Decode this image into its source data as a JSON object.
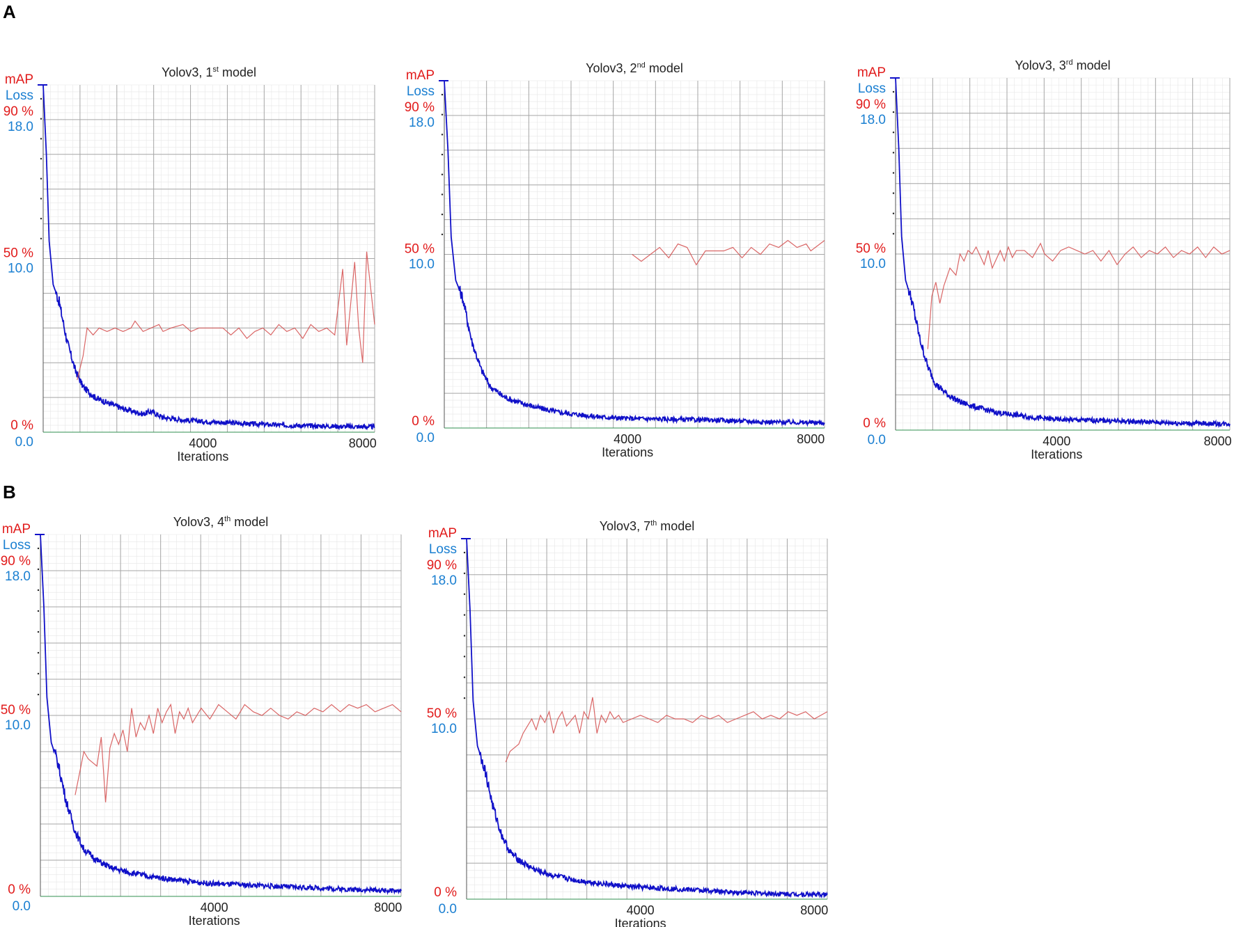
{
  "figure": {
    "panels": [
      "A",
      "B"
    ]
  },
  "colors": {
    "map": "#d44b4b",
    "loss": "#1010c8",
    "map_label": "#e11b1b",
    "loss_label": "#1a7fd1",
    "grid_major": "#a6a6a6",
    "grid_minor": "#e6e6e6"
  },
  "chart_data": [
    {
      "type": "line",
      "panel": "A",
      "title": "Yolov3, 1st model",
      "title_main": "Yolov3,  1",
      "title_sup": "st",
      "title_tail": " model",
      "xlabel": "Iterations",
      "xticks": [
        "4000",
        "8000"
      ],
      "y_left_labels": [
        "mAP",
        "Loss",
        "90 %",
        "18.0",
        "50 %",
        "10.0",
        "0 %",
        "0.0"
      ],
      "xlim": [
        0,
        8300
      ],
      "loss_ylim": [
        0,
        20
      ],
      "map_ylim": [
        0,
        100
      ],
      "loss_curve": [
        [
          0,
          20
        ],
        [
          80,
          16
        ],
        [
          150,
          11
        ],
        [
          250,
          8.5
        ],
        [
          400,
          7.5
        ],
        [
          600,
          5.2
        ],
        [
          800,
          3.6
        ],
        [
          1000,
          2.6
        ],
        [
          1300,
          2.0
        ],
        [
          1600,
          1.7
        ],
        [
          2000,
          1.35
        ],
        [
          2500,
          1.05
        ],
        [
          2700,
          1.2
        ],
        [
          3000,
          0.85
        ],
        [
          3500,
          0.7
        ],
        [
          4000,
          0.62
        ],
        [
          5000,
          0.5
        ],
        [
          6000,
          0.4
        ],
        [
          7000,
          0.35
        ],
        [
          8300,
          0.3
        ]
      ],
      "map_curve": [
        [
          850,
          15
        ],
        [
          1000,
          22
        ],
        [
          1100,
          30
        ],
        [
          1250,
          28
        ],
        [
          1400,
          30
        ],
        [
          1600,
          29
        ],
        [
          1800,
          30
        ],
        [
          2000,
          29
        ],
        [
          2200,
          30
        ],
        [
          2300,
          32
        ],
        [
          2500,
          29
        ],
        [
          2700,
          30
        ],
        [
          2900,
          31
        ],
        [
          3000,
          29
        ],
        [
          3200,
          30
        ],
        [
          3500,
          31
        ],
        [
          3700,
          29
        ],
        [
          3900,
          30
        ],
        [
          4100,
          30
        ],
        [
          4300,
          30
        ],
        [
          4500,
          30
        ],
        [
          4700,
          28
        ],
        [
          4900,
          30
        ],
        [
          5100,
          27
        ],
        [
          5300,
          29
        ],
        [
          5500,
          30
        ],
        [
          5700,
          28
        ],
        [
          5900,
          31
        ],
        [
          6100,
          29
        ],
        [
          6300,
          30
        ],
        [
          6500,
          27
        ],
        [
          6700,
          31
        ],
        [
          6900,
          29
        ],
        [
          7100,
          30
        ],
        [
          7300,
          28
        ],
        [
          7500,
          47
        ],
        [
          7600,
          25
        ],
        [
          7800,
          49
        ],
        [
          7900,
          30
        ],
        [
          8000,
          20
        ],
        [
          8100,
          52
        ],
        [
          8300,
          31
        ]
      ]
    },
    {
      "type": "line",
      "panel": "A",
      "title": "Yolov3, 2nd model",
      "title_main": "Yolov3,  2",
      "title_sup": "nd",
      "title_tail": " model",
      "xlabel": "Iterations",
      "xticks": [
        "4000",
        "8000"
      ],
      "y_left_labels": [
        "mAP",
        "Loss",
        "90 %",
        "18.0",
        "50 %",
        "10.0",
        "0 %",
        "0.0"
      ],
      "xlim": [
        0,
        8300
      ],
      "loss_ylim": [
        0,
        20
      ],
      "map_ylim": [
        0,
        100
      ],
      "loss_curve": [
        [
          0,
          20
        ],
        [
          80,
          16
        ],
        [
          150,
          11
        ],
        [
          250,
          8.5
        ],
        [
          400,
          7.5
        ],
        [
          600,
          5.0
        ],
        [
          800,
          3.4
        ],
        [
          1000,
          2.4
        ],
        [
          1300,
          1.8
        ],
        [
          1600,
          1.5
        ],
        [
          2000,
          1.2
        ],
        [
          2500,
          0.9
        ],
        [
          3000,
          0.75
        ],
        [
          3500,
          0.62
        ],
        [
          4000,
          0.55
        ],
        [
          5000,
          0.5
        ],
        [
          6000,
          0.45
        ],
        [
          7000,
          0.35
        ],
        [
          8300,
          0.3
        ]
      ],
      "map_curve": [
        [
          4100,
          50
        ],
        [
          4300,
          48
        ],
        [
          4500,
          50
        ],
        [
          4700,
          52
        ],
        [
          4900,
          49
        ],
        [
          5100,
          53
        ],
        [
          5300,
          52
        ],
        [
          5500,
          47
        ],
        [
          5700,
          51
        ],
        [
          5900,
          51
        ],
        [
          6100,
          51
        ],
        [
          6300,
          52
        ],
        [
          6500,
          49
        ],
        [
          6700,
          52
        ],
        [
          6900,
          50
        ],
        [
          7100,
          53
        ],
        [
          7300,
          52
        ],
        [
          7500,
          54
        ],
        [
          7700,
          52
        ],
        [
          7900,
          53
        ],
        [
          8000,
          51
        ],
        [
          8300,
          54
        ]
      ]
    },
    {
      "type": "line",
      "panel": "A",
      "title": "Yolov3, 3rd model",
      "title_main": "Yolov3,  3",
      "title_sup": "rd",
      "title_tail": " model",
      "xlabel": "Iterations",
      "xticks": [
        "4000",
        "8000"
      ],
      "y_left_labels": [
        "mAP",
        "Loss",
        "90 %",
        "18.0",
        "50 %",
        "10.0",
        "0 %",
        "0.0"
      ],
      "xlim": [
        0,
        8300
      ],
      "loss_ylim": [
        0,
        20
      ],
      "map_ylim": [
        0,
        100
      ],
      "loss_curve": [
        [
          0,
          20
        ],
        [
          80,
          16
        ],
        [
          150,
          11
        ],
        [
          250,
          8.5
        ],
        [
          400,
          7.4
        ],
        [
          600,
          5.2
        ],
        [
          800,
          3.6
        ],
        [
          1000,
          2.6
        ],
        [
          1300,
          2.0
        ],
        [
          1600,
          1.6
        ],
        [
          2000,
          1.3
        ],
        [
          2500,
          1.0
        ],
        [
          3000,
          0.85
        ],
        [
          3500,
          0.7
        ],
        [
          4000,
          0.6
        ],
        [
          5000,
          0.55
        ],
        [
          6000,
          0.48
        ],
        [
          7000,
          0.4
        ],
        [
          8300,
          0.35
        ]
      ],
      "map_curve": [
        [
          800,
          23
        ],
        [
          900,
          38
        ],
        [
          1000,
          42
        ],
        [
          1100,
          36
        ],
        [
          1200,
          41
        ],
        [
          1350,
          46
        ],
        [
          1500,
          44
        ],
        [
          1600,
          50
        ],
        [
          1700,
          48
        ],
        [
          1800,
          51
        ],
        [
          1900,
          50
        ],
        [
          2000,
          52
        ],
        [
          2200,
          47
        ],
        [
          2300,
          51
        ],
        [
          2400,
          46
        ],
        [
          2600,
          51
        ],
        [
          2700,
          48
        ],
        [
          2800,
          52
        ],
        [
          2900,
          49
        ],
        [
          3000,
          51
        ],
        [
          3200,
          51
        ],
        [
          3400,
          49
        ],
        [
          3600,
          53
        ],
        [
          3700,
          50
        ],
        [
          3900,
          48
        ],
        [
          4100,
          51
        ],
        [
          4300,
          52
        ],
        [
          4500,
          51
        ],
        [
          4700,
          50
        ],
        [
          4900,
          51
        ],
        [
          5100,
          48
        ],
        [
          5300,
          51
        ],
        [
          5500,
          47
        ],
        [
          5700,
          50
        ],
        [
          5900,
          52
        ],
        [
          6100,
          49
        ],
        [
          6300,
          51
        ],
        [
          6500,
          50
        ],
        [
          6700,
          52
        ],
        [
          6900,
          49
        ],
        [
          7100,
          51
        ],
        [
          7300,
          50
        ],
        [
          7500,
          52
        ],
        [
          7700,
          49
        ],
        [
          7900,
          52
        ],
        [
          8100,
          50
        ],
        [
          8300,
          51
        ]
      ]
    },
    {
      "type": "line",
      "panel": "B",
      "title": "Yolov3, 4th model",
      "title_main": "Yolov3,  4",
      "title_sup": "th",
      "title_tail": " model",
      "xlabel": "Iterations",
      "xticks": [
        "4000",
        "8000"
      ],
      "y_left_labels": [
        "mAP",
        "Loss",
        "90 %",
        "18.0",
        "50 %",
        "10.0",
        "0 %",
        "0.0"
      ],
      "xlim": [
        0,
        8300
      ],
      "loss_ylim": [
        0,
        20
      ],
      "map_ylim": [
        0,
        100
      ],
      "loss_curve": [
        [
          0,
          20
        ],
        [
          80,
          16
        ],
        [
          150,
          11
        ],
        [
          250,
          8.5
        ],
        [
          400,
          7.4
        ],
        [
          600,
          5.2
        ],
        [
          800,
          3.6
        ],
        [
          1000,
          2.6
        ],
        [
          1300,
          2.0
        ],
        [
          1600,
          1.6
        ],
        [
          2000,
          1.35
        ],
        [
          2500,
          1.1
        ],
        [
          3000,
          0.95
        ],
        [
          3500,
          0.8
        ],
        [
          4000,
          0.7
        ],
        [
          5000,
          0.6
        ],
        [
          6000,
          0.5
        ],
        [
          7000,
          0.4
        ],
        [
          8300,
          0.3
        ]
      ],
      "map_curve": [
        [
          800,
          28
        ],
        [
          1000,
          40
        ],
        [
          1100,
          38
        ],
        [
          1300,
          36
        ],
        [
          1400,
          44
        ],
        [
          1500,
          26
        ],
        [
          1600,
          41
        ],
        [
          1700,
          45
        ],
        [
          1800,
          42
        ],
        [
          1900,
          46
        ],
        [
          2000,
          40
        ],
        [
          2100,
          52
        ],
        [
          2200,
          44
        ],
        [
          2300,
          48
        ],
        [
          2400,
          46
        ],
        [
          2500,
          50
        ],
        [
          2600,
          45
        ],
        [
          2700,
          52
        ],
        [
          2800,
          48
        ],
        [
          2900,
          51
        ],
        [
          3000,
          53
        ],
        [
          3100,
          45
        ],
        [
          3200,
          51
        ],
        [
          3300,
          49
        ],
        [
          3400,
          52
        ],
        [
          3500,
          48
        ],
        [
          3700,
          52
        ],
        [
          3900,
          49
        ],
        [
          4100,
          53
        ],
        [
          4300,
          51
        ],
        [
          4500,
          49
        ],
        [
          4700,
          53
        ],
        [
          4900,
          51
        ],
        [
          5100,
          50
        ],
        [
          5300,
          52
        ],
        [
          5500,
          50
        ],
        [
          5700,
          49
        ],
        [
          5900,
          51
        ],
        [
          6100,
          50
        ],
        [
          6300,
          52
        ],
        [
          6500,
          51
        ],
        [
          6700,
          53
        ],
        [
          6900,
          51
        ],
        [
          7100,
          53
        ],
        [
          7300,
          52
        ],
        [
          7500,
          53
        ],
        [
          7700,
          51
        ],
        [
          7900,
          52
        ],
        [
          8100,
          53
        ],
        [
          8300,
          51
        ]
      ]
    },
    {
      "type": "line",
      "panel": "B",
      "title": "Yolov3, 7th model",
      "title_main": "Yolov3,  7",
      "title_sup": "th",
      "title_tail": " model",
      "xlabel": "Iterations",
      "xticks": [
        "4000",
        "8000"
      ],
      "y_left_labels": [
        "mAP",
        "Loss",
        "90 %",
        "18.0",
        "50 %",
        "10.0",
        "0 %",
        "0.0"
      ],
      "xlim": [
        0,
        8300
      ],
      "loss_ylim": [
        0,
        20
      ],
      "map_ylim": [
        0,
        100
      ],
      "loss_curve": [
        [
          0,
          20
        ],
        [
          80,
          16
        ],
        [
          150,
          11
        ],
        [
          250,
          8.5
        ],
        [
          400,
          7.4
        ],
        [
          600,
          5.2
        ],
        [
          800,
          3.6
        ],
        [
          1000,
          2.6
        ],
        [
          1300,
          2.0
        ],
        [
          1600,
          1.6
        ],
        [
          2000,
          1.3
        ],
        [
          2500,
          1.05
        ],
        [
          3000,
          0.9
        ],
        [
          3500,
          0.75
        ],
        [
          4000,
          0.65
        ],
        [
          5000,
          0.55
        ],
        [
          6000,
          0.4
        ],
        [
          7000,
          0.3
        ],
        [
          8300,
          0.25
        ]
      ],
      "map_curve": [
        [
          900,
          38
        ],
        [
          1000,
          41
        ],
        [
          1100,
          42
        ],
        [
          1200,
          43
        ],
        [
          1300,
          46
        ],
        [
          1400,
          48
        ],
        [
          1500,
          50
        ],
        [
          1600,
          47
        ],
        [
          1700,
          51
        ],
        [
          1800,
          49
        ],
        [
          1900,
          52
        ],
        [
          2000,
          46
        ],
        [
          2100,
          50
        ],
        [
          2200,
          52
        ],
        [
          2300,
          48
        ],
        [
          2500,
          51
        ],
        [
          2600,
          46
        ],
        [
          2700,
          52
        ],
        [
          2800,
          50
        ],
        [
          2900,
          56
        ],
        [
          3000,
          46
        ],
        [
          3100,
          51
        ],
        [
          3200,
          49
        ],
        [
          3300,
          52
        ],
        [
          3400,
          50
        ],
        [
          3500,
          51
        ],
        [
          3600,
          49
        ],
        [
          3800,
          50
        ],
        [
          4000,
          51
        ],
        [
          4200,
          50
        ],
        [
          4400,
          49
        ],
        [
          4600,
          51
        ],
        [
          4800,
          50
        ],
        [
          5000,
          50
        ],
        [
          5200,
          49
        ],
        [
          5400,
          51
        ],
        [
          5600,
          50
        ],
        [
          5800,
          51
        ],
        [
          6000,
          49
        ],
        [
          6200,
          50
        ],
        [
          6400,
          51
        ],
        [
          6600,
          52
        ],
        [
          6800,
          50
        ],
        [
          7000,
          51
        ],
        [
          7200,
          50
        ],
        [
          7400,
          52
        ],
        [
          7600,
          51
        ],
        [
          7800,
          52
        ],
        [
          8000,
          50
        ],
        [
          8300,
          52
        ]
      ]
    }
  ]
}
